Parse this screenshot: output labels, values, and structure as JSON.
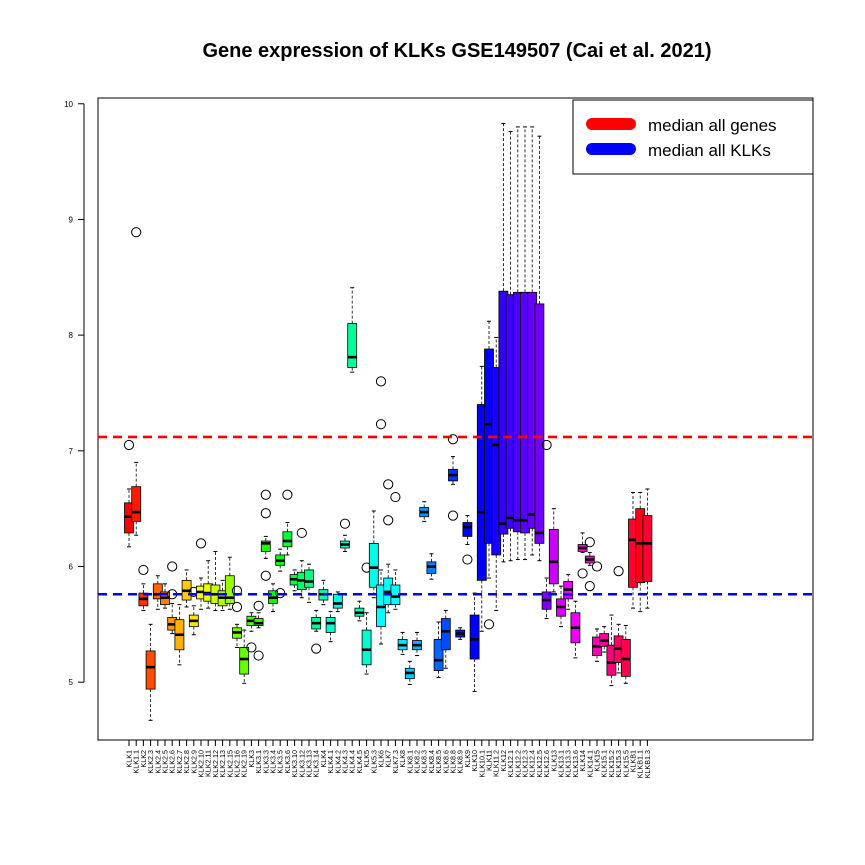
{
  "chart_data": {
    "type": "boxplot",
    "title": "Gene expression of KLKs GSE149507 (Cai et al. 2021)",
    "xlabel": "",
    "ylabel": "",
    "ylim": [
      4.5,
      10.05
    ],
    "yticks": [
      5,
      6,
      7,
      8,
      9,
      10
    ],
    "grid": false,
    "legend_position": "top-right",
    "reference_lines": [
      {
        "name": "median all genes",
        "value": 7.12,
        "color": "#ff0000",
        "style": "dashed"
      },
      {
        "name": "median all KLKs",
        "value": 5.76,
        "color": "#0000ff",
        "style": "dashed"
      }
    ],
    "legend": [
      {
        "label": "median all genes",
        "color": "#ff0000"
      },
      {
        "label": "median all KLKs",
        "color": "#0000ff"
      }
    ],
    "boxes": [
      {
        "label": "KLK1",
        "min": 6.17,
        "q1": 6.29,
        "median": 6.43,
        "q3": 6.55,
        "max": 6.67,
        "color": "#ff0000",
        "outliers": [
          7.05
        ]
      },
      {
        "label": "KLK1.1",
        "min": 6.27,
        "q1": 6.39,
        "median": 6.47,
        "q3": 6.69,
        "max": 6.9,
        "color": "#ff1a00",
        "outliers": [
          8.89
        ]
      },
      {
        "label": "KLK2",
        "min": 5.62,
        "q1": 5.66,
        "median": 5.72,
        "q3": 5.77,
        "max": 5.85,
        "color": "#ff3300",
        "outliers": [
          5.97
        ]
      },
      {
        "label": "KLK2.3",
        "min": 4.67,
        "q1": 4.94,
        "median": 5.13,
        "q3": 5.27,
        "max": 5.5,
        "color": "#ff4d00",
        "outliers": []
      },
      {
        "label": "KLK2.4",
        "min": 5.63,
        "q1": 5.72,
        "median": 5.76,
        "q3": 5.85,
        "max": 5.92,
        "color": "#ff6600",
        "outliers": []
      },
      {
        "label": "KLK2.5",
        "min": 5.64,
        "q1": 5.67,
        "median": 5.73,
        "q3": 5.78,
        "max": 5.85,
        "color": "#ff8000",
        "outliers": []
      },
      {
        "label": "KLK2.6",
        "min": 5.42,
        "q1": 5.45,
        "median": 5.5,
        "q3": 5.56,
        "max": 5.68,
        "color": "#ff9900",
        "outliers": [
          6.0,
          5.76
        ]
      },
      {
        "label": "KLK2.7",
        "min": 5.15,
        "q1": 5.28,
        "median": 5.41,
        "q3": 5.54,
        "max": 5.67,
        "color": "#ffb300",
        "outliers": []
      },
      {
        "label": "KLK2.8",
        "min": 5.65,
        "q1": 5.71,
        "median": 5.79,
        "q3": 5.88,
        "max": 5.97,
        "color": "#ffcc00",
        "outliers": []
      },
      {
        "label": "KLK2.9",
        "min": 5.41,
        "q1": 5.48,
        "median": 5.53,
        "q3": 5.58,
        "max": 5.66,
        "color": "#ffe600",
        "outliers": [
          5.78
        ]
      },
      {
        "label": "KLK2.10",
        "min": 5.63,
        "q1": 5.72,
        "median": 5.78,
        "q3": 5.83,
        "max": 5.9,
        "color": "#ffff00",
        "outliers": [
          6.2
        ]
      },
      {
        "label": "KLK2.11",
        "min": 5.64,
        "q1": 5.7,
        "median": 5.77,
        "q3": 5.85,
        "max": 6.05,
        "color": "#e6ff00",
        "outliers": []
      },
      {
        "label": "KLK2.12",
        "min": 5.62,
        "q1": 5.68,
        "median": 5.76,
        "q3": 5.84,
        "max": 6.13,
        "color": "#ccff00",
        "outliers": []
      },
      {
        "label": "KLK2.13",
        "min": 5.62,
        "q1": 5.66,
        "median": 5.73,
        "q3": 5.79,
        "max": 5.88,
        "color": "#b3ff00",
        "outliers": []
      },
      {
        "label": "KLK2.15",
        "min": 5.63,
        "q1": 5.68,
        "median": 5.73,
        "q3": 5.92,
        "max": 6.08,
        "color": "#99ff00",
        "outliers": []
      },
      {
        "label": "KLK2.16",
        "min": 5.3,
        "q1": 5.38,
        "median": 5.43,
        "q3": 5.47,
        "max": 5.5,
        "color": "#80ff00",
        "outliers": [
          5.79,
          5.65
        ]
      },
      {
        "label": "KLK2.19",
        "min": 4.99,
        "q1": 5.07,
        "median": 5.2,
        "q3": 5.3,
        "max": 5.45,
        "color": "#66ff00",
        "outliers": []
      },
      {
        "label": "KLK3",
        "min": 5.44,
        "q1": 5.49,
        "median": 5.53,
        "q3": 5.57,
        "max": 5.6,
        "color": "#4dff00",
        "outliers": [
          5.3
        ]
      },
      {
        "label": "KLK3.1",
        "min": 5.47,
        "q1": 5.49,
        "median": 5.51,
        "q3": 5.55,
        "max": 5.6,
        "color": "#33ff00",
        "outliers": [
          5.66,
          5.23
        ]
      },
      {
        "label": "KLK3.3",
        "min": 6.07,
        "q1": 6.13,
        "median": 6.2,
        "q3": 6.22,
        "max": 6.26,
        "color": "#1aff00",
        "outliers": [
          6.62,
          6.46,
          5.92
        ]
      },
      {
        "label": "KLK3.4",
        "min": 5.61,
        "q1": 5.68,
        "median": 5.73,
        "q3": 5.79,
        "max": 5.85,
        "color": "#00ff00",
        "outliers": []
      },
      {
        "label": "KLK3.5",
        "min": 5.96,
        "q1": 6.01,
        "median": 6.05,
        "q3": 6.1,
        "max": 6.15,
        "color": "#00ff1a",
        "outliers": [
          5.77
        ]
      },
      {
        "label": "KLK3.6",
        "min": 6.1,
        "q1": 6.17,
        "median": 6.22,
        "q3": 6.3,
        "max": 6.38,
        "color": "#00ff33",
        "outliers": [
          6.62
        ]
      },
      {
        "label": "KLK3.10",
        "min": 5.79,
        "q1": 5.84,
        "median": 5.89,
        "q3": 5.93,
        "max": 5.97,
        "color": "#00ff4d",
        "outliers": []
      },
      {
        "label": "KLK3.12",
        "min": 5.73,
        "q1": 5.8,
        "median": 5.88,
        "q3": 5.95,
        "max": 6.05,
        "color": "#00ff66",
        "outliers": [
          6.29
        ]
      },
      {
        "label": "KLK3.13",
        "min": 5.69,
        "q1": 5.82,
        "median": 5.87,
        "q3": 5.97,
        "max": 6.02,
        "color": "#00ff80",
        "outliers": []
      },
      {
        "label": "KLK3.14",
        "min": 5.44,
        "q1": 5.46,
        "median": 5.51,
        "q3": 5.56,
        "max": 5.62,
        "color": "#00ff99",
        "outliers": [
          5.29
        ]
      },
      {
        "label": "KLK4",
        "min": 5.67,
        "q1": 5.71,
        "median": 5.76,
        "q3": 5.8,
        "max": 5.88,
        "color": "#00ffb3",
        "outliers": []
      },
      {
        "label": "KLK4.1",
        "min": 5.35,
        "q1": 5.43,
        "median": 5.51,
        "q3": 5.56,
        "max": 5.61,
        "color": "#00ffcc",
        "outliers": []
      },
      {
        "label": "KLK4.2",
        "min": 5.61,
        "q1": 5.64,
        "median": 5.68,
        "q3": 5.76,
        "max": 5.78,
        "color": "#00ffe6",
        "outliers": []
      },
      {
        "label": "KLK4.3",
        "min": 6.13,
        "q1": 6.16,
        "median": 6.19,
        "q3": 6.22,
        "max": 6.27,
        "color": "#00ffcc",
        "outliers": [
          6.37
        ]
      },
      {
        "label": "KLK4.4",
        "min": 7.68,
        "q1": 7.72,
        "median": 7.81,
        "q3": 8.1,
        "max": 8.41,
        "color": "#00ff99",
        "outliers": []
      },
      {
        "label": "KLK4.5",
        "min": 5.53,
        "q1": 5.57,
        "median": 5.6,
        "q3": 5.64,
        "max": 5.7,
        "color": "#00ffb3",
        "outliers": []
      },
      {
        "label": "KLK5",
        "min": 5.07,
        "q1": 5.15,
        "median": 5.28,
        "q3": 5.45,
        "max": 5.6,
        "color": "#00ffcc",
        "outliers": [
          5.99
        ]
      },
      {
        "label": "KLK5.3",
        "min": 5.73,
        "q1": 5.82,
        "median": 5.99,
        "q3": 6.2,
        "max": 6.48,
        "color": "#00ffe6",
        "outliers": []
      },
      {
        "label": "KLK6",
        "min": 5.33,
        "q1": 5.48,
        "median": 5.65,
        "q3": 5.84,
        "max": 5.97,
        "color": "#00ffff",
        "outliers": [
          7.6,
          7.23
        ]
      },
      {
        "label": "KLK7",
        "min": 5.6,
        "q1": 5.67,
        "median": 5.78,
        "q3": 5.9,
        "max": 6.02,
        "color": "#00ffff",
        "outliers": [
          6.71,
          6.4
        ]
      },
      {
        "label": "KLK7.3",
        "min": 5.63,
        "q1": 5.67,
        "median": 5.74,
        "q3": 5.84,
        "max": 5.97,
        "color": "#00ffff",
        "outliers": [
          6.6
        ]
      },
      {
        "label": "KLK8",
        "min": 5.24,
        "q1": 5.28,
        "median": 5.32,
        "q3": 5.37,
        "max": 5.43,
        "color": "#00e6ff",
        "outliers": []
      },
      {
        "label": "KLK8.1",
        "min": 4.98,
        "q1": 5.03,
        "median": 5.08,
        "q3": 5.12,
        "max": 5.18,
        "color": "#00ccff",
        "outliers": []
      },
      {
        "label": "KLK8.2",
        "min": 5.23,
        "q1": 5.28,
        "median": 5.32,
        "q3": 5.36,
        "max": 5.43,
        "color": "#00b3ff",
        "outliers": []
      },
      {
        "label": "KLK8.3",
        "min": 6.39,
        "q1": 6.43,
        "median": 6.47,
        "q3": 6.51,
        "max": 6.56,
        "color": "#0099ff",
        "outliers": []
      },
      {
        "label": "KLK8.4",
        "min": 5.89,
        "q1": 5.94,
        "median": 6.0,
        "q3": 6.04,
        "max": 6.11,
        "color": "#0080ff",
        "outliers": []
      },
      {
        "label": "KLK8.5",
        "min": 5.04,
        "q1": 5.1,
        "median": 5.19,
        "q3": 5.37,
        "max": 5.52,
        "color": "#0066ff",
        "outliers": []
      },
      {
        "label": "KLK8.6",
        "min": 5.12,
        "q1": 5.28,
        "median": 5.44,
        "q3": 5.55,
        "max": 5.62,
        "color": "#004dff",
        "outliers": []
      },
      {
        "label": "KLK8.8",
        "min": 6.71,
        "q1": 6.74,
        "median": 6.79,
        "q3": 6.84,
        "max": 6.95,
        "color": "#0033ff",
        "outliers": [
          7.1,
          6.44
        ]
      },
      {
        "label": "KLK8.9",
        "min": 5.37,
        "q1": 5.39,
        "median": 5.42,
        "q3": 5.45,
        "max": 5.47,
        "color": "#001aff",
        "outliers": []
      },
      {
        "label": "KLK9",
        "min": 6.19,
        "q1": 6.26,
        "median": 6.34,
        "q3": 6.38,
        "max": 6.44,
        "color": "#0000ff",
        "outliers": [
          6.06
        ]
      },
      {
        "label": "KLK10",
        "min": 4.92,
        "q1": 5.2,
        "median": 5.37,
        "q3": 5.58,
        "max": 5.77,
        "color": "#0000ff",
        "outliers": []
      },
      {
        "label": "KLK10.1",
        "min": 5.44,
        "q1": 5.88,
        "median": 6.47,
        "q3": 7.4,
        "max": 7.73,
        "color": "#0000ff",
        "outliers": []
      },
      {
        "label": "KLK11",
        "min": 5.9,
        "q1": 6.2,
        "median": 7.23,
        "q3": 7.88,
        "max": 8.12,
        "color": "#0000ff",
        "outliers": [
          5.5
        ]
      },
      {
        "label": "KLK11.2",
        "min": 5.62,
        "q1": 6.1,
        "median": 7.05,
        "q3": 7.72,
        "max": 7.98,
        "color": "#1a00ff",
        "outliers": []
      },
      {
        "label": "KLK12",
        "min": 6.04,
        "q1": 6.28,
        "median": 6.37,
        "q3": 8.38,
        "max": 9.83,
        "color": "#3300ff",
        "outliers": []
      },
      {
        "label": "KLK12.1",
        "min": 6.05,
        "q1": 6.33,
        "median": 6.42,
        "q3": 8.35,
        "max": 9.76,
        "color": "#4000ff",
        "outliers": []
      },
      {
        "label": "KLK12.2",
        "min": 6.06,
        "q1": 6.3,
        "median": 6.4,
        "q3": 8.37,
        "max": 9.8,
        "color": "#4d00ff",
        "outliers": []
      },
      {
        "label": "KLK12.3",
        "min": 6.06,
        "q1": 6.29,
        "median": 6.4,
        "q3": 8.37,
        "max": 9.8,
        "color": "#5900ff",
        "outliers": []
      },
      {
        "label": "KLK12.4",
        "min": 6.1,
        "q1": 6.33,
        "median": 6.45,
        "q3": 8.37,
        "max": 9.8,
        "color": "#6600ff",
        "outliers": []
      },
      {
        "label": "KLK12.5",
        "min": 6.05,
        "q1": 6.2,
        "median": 6.29,
        "q3": 8.27,
        "max": 9.72,
        "color": "#7300ff",
        "outliers": []
      },
      {
        "label": "KLK12.6",
        "min": 5.55,
        "q1": 5.63,
        "median": 5.71,
        "q3": 5.78,
        "max": 5.9,
        "color": "#8000ff",
        "outliers": [
          7.05
        ]
      },
      {
        "label": "KLK13",
        "min": 5.78,
        "q1": 5.85,
        "median": 6.04,
        "q3": 6.32,
        "max": 6.5,
        "color": "#cc00ff",
        "outliers": []
      },
      {
        "label": "KLK13.1",
        "min": 5.48,
        "q1": 5.57,
        "median": 5.65,
        "q3": 5.72,
        "max": 5.83,
        "color": "#d900ff",
        "outliers": []
      },
      {
        "label": "KLK13.3",
        "min": 5.63,
        "q1": 5.72,
        "median": 5.8,
        "q3": 5.87,
        "max": 5.93,
        "color": "#e600ff",
        "outliers": []
      },
      {
        "label": "KLK13.6",
        "min": 5.21,
        "q1": 5.34,
        "median": 5.47,
        "q3": 5.6,
        "max": 5.7,
        "color": "#f200f2",
        "outliers": []
      },
      {
        "label": "KLK14",
        "min": 6.12,
        "q1": 6.13,
        "median": 6.16,
        "q3": 6.19,
        "max": 6.29,
        "color": "#ff00e6",
        "outliers": [
          5.94
        ]
      },
      {
        "label": "KLK14.1",
        "min": 6.01,
        "q1": 6.03,
        "median": 6.06,
        "q3": 6.09,
        "max": 6.12,
        "color": "#ff00cc",
        "outliers": [
          6.21,
          5.83
        ]
      },
      {
        "label": "KLK15",
        "min": 5.18,
        "q1": 5.23,
        "median": 5.31,
        "q3": 5.39,
        "max": 5.46,
        "color": "#ff00b3",
        "outliers": [
          6.0
        ]
      },
      {
        "label": "KLK15.1",
        "min": 5.26,
        "q1": 5.31,
        "median": 5.36,
        "q3": 5.42,
        "max": 5.48,
        "color": "#ff0099",
        "outliers": []
      },
      {
        "label": "KLK15.2",
        "min": 4.97,
        "q1": 5.06,
        "median": 5.17,
        "q3": 5.32,
        "max": 5.58,
        "color": "#ff0080",
        "outliers": []
      },
      {
        "label": "KLK15.3",
        "min": 5.08,
        "q1": 5.17,
        "median": 5.29,
        "q3": 5.4,
        "max": 5.5,
        "color": "#ff0066",
        "outliers": [
          5.96
        ]
      },
      {
        "label": "KLK15.5",
        "min": 4.99,
        "q1": 5.05,
        "median": 5.2,
        "q3": 5.37,
        "max": 5.49,
        "color": "#ff004d",
        "outliers": []
      },
      {
        "label": "KLKB1",
        "min": 5.64,
        "q1": 5.82,
        "median": 6.23,
        "q3": 6.41,
        "max": 6.64,
        "color": "#ff0033",
        "outliers": []
      },
      {
        "label": "KLKB1.1",
        "min": 5.61,
        "q1": 5.86,
        "median": 6.2,
        "q3": 6.5,
        "max": 6.64,
        "color": "#ff001a",
        "outliers": []
      },
      {
        "label": "KLKB1.3",
        "min": 5.64,
        "q1": 5.87,
        "median": 6.2,
        "q3": 6.44,
        "max": 6.67,
        "color": "#ff0033",
        "outliers": []
      }
    ]
  }
}
